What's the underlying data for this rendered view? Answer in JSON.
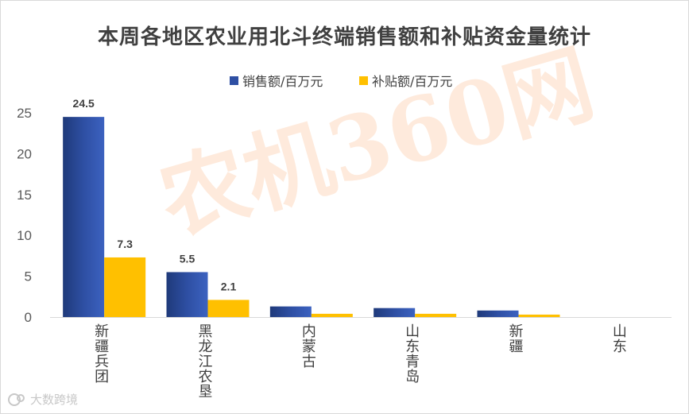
{
  "chart_data": {
    "type": "bar",
    "title": "本周各地区农业用北斗终端销售额和补贴资金量统计",
    "categories": [
      "新疆兵团",
      "黑龙江农垦",
      "内蒙古",
      "山东青岛",
      "新疆",
      "山东"
    ],
    "series": [
      {
        "name": "销售额/百万元",
        "color": "#2e4fa3",
        "values": [
          24.5,
          5.5,
          1.3,
          1.1,
          0.8,
          0
        ],
        "labels": [
          "24.5",
          "5.5",
          "",
          "",
          "",
          ""
        ]
      },
      {
        "name": "补贴额/百万元",
        "color": "#ffc000",
        "values": [
          7.3,
          2.1,
          0.4,
          0.4,
          0.3,
          0
        ],
        "labels": [
          "7.3",
          "2.1",
          "",
          "",
          "",
          ""
        ]
      }
    ],
    "ylim": [
      0,
      25
    ],
    "yticks": [
      "0",
      "5",
      "10",
      "15",
      "20",
      "25"
    ],
    "legend": "top-center",
    "grid": false
  },
  "watermark": "农机360网",
  "logo_text": "大数跨境"
}
